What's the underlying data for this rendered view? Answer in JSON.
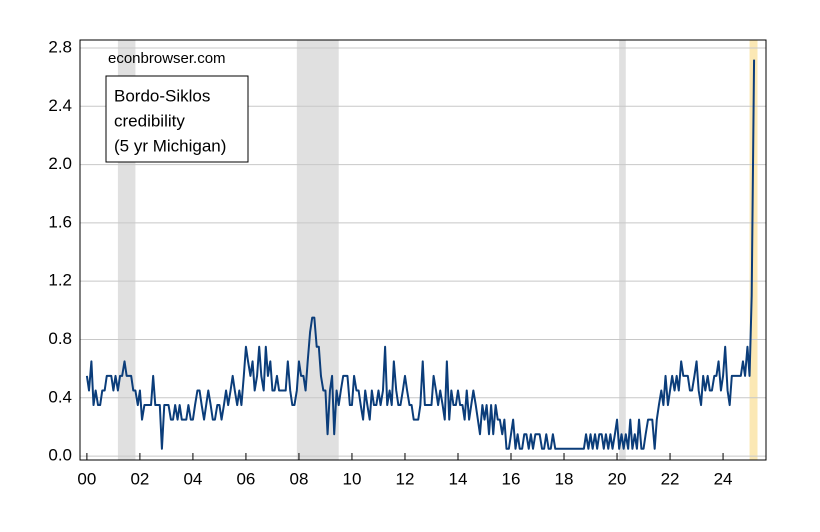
{
  "chart_data": {
    "type": "line",
    "annotations": [
      "econbrowser.com",
      "Bordo-Siklos",
      "credibility",
      "(5 yr Michigan)"
    ],
    "shaded_ranges": [
      [
        2001.17,
        2001.83,
        "#e0e0e0"
      ],
      [
        2007.92,
        2009.5,
        "#e0e0e0"
      ],
      [
        2020.08,
        2020.33,
        "#e0e0e0"
      ],
      [
        2025.0,
        2025.3,
        "#fbe8b4"
      ]
    ],
    "xlim": [
      1999.74,
      2025.62
    ],
    "ylim": [
      -0.027,
      2.855
    ],
    "grid": true,
    "xticks": [
      {
        "value": 2000,
        "label": "00"
      },
      {
        "value": 2002,
        "label": "02"
      },
      {
        "value": 2004,
        "label": "04"
      },
      {
        "value": 2006,
        "label": "06"
      },
      {
        "value": 2008,
        "label": "08"
      },
      {
        "value": 2010,
        "label": "10"
      },
      {
        "value": 2012,
        "label": "12"
      },
      {
        "value": 2014,
        "label": "14"
      },
      {
        "value": 2016,
        "label": "16"
      },
      {
        "value": 2018,
        "label": "18"
      },
      {
        "value": 2020,
        "label": "20"
      },
      {
        "value": 2022,
        "label": "22"
      },
      {
        "value": 2024,
        "label": "24"
      }
    ],
    "yticks": [
      {
        "value": 0,
        "label": "0.0"
      },
      0.4,
      0.8,
      1.2,
      1.6,
      {
        "value": 2,
        "label": "2.0"
      },
      2.4,
      2.8
    ],
    "x": [
      2000,
      2000.08,
      2000.17,
      2000.25,
      2000.33,
      2000.42,
      2000.5,
      2000.58,
      2000.67,
      2000.75,
      2000.83,
      2000.92,
      2001,
      2001.08,
      2001.17,
      2001.25,
      2001.33,
      2001.42,
      2001.5,
      2001.58,
      2001.67,
      2001.75,
      2001.83,
      2001.92,
      2002,
      2002.08,
      2002.17,
      2002.25,
      2002.33,
      2002.42,
      2002.5,
      2002.58,
      2002.67,
      2002.75,
      2002.83,
      2002.92,
      2003,
      2003.08,
      2003.17,
      2003.25,
      2003.33,
      2003.42,
      2003.5,
      2003.58,
      2003.67,
      2003.75,
      2003.83,
      2003.92,
      2004,
      2004.08,
      2004.17,
      2004.25,
      2004.33,
      2004.42,
      2004.5,
      2004.58,
      2004.67,
      2004.75,
      2004.83,
      2004.92,
      2005,
      2005.08,
      2005.17,
      2005.25,
      2005.33,
      2005.42,
      2005.5,
      2005.58,
      2005.67,
      2005.75,
      2005.83,
      2005.92,
      2006,
      2006.08,
      2006.17,
      2006.25,
      2006.33,
      2006.42,
      2006.5,
      2006.58,
      2006.67,
      2006.75,
      2006.83,
      2006.92,
      2007,
      2007.08,
      2007.17,
      2007.25,
      2007.33,
      2007.42,
      2007.5,
      2007.58,
      2007.67,
      2007.75,
      2007.83,
      2007.92,
      2008,
      2008.08,
      2008.17,
      2008.25,
      2008.33,
      2008.42,
      2008.5,
      2008.58,
      2008.67,
      2008.75,
      2008.83,
      2008.92,
      2009,
      2009.08,
      2009.17,
      2009.25,
      2009.33,
      2009.42,
      2009.5,
      2009.58,
      2009.67,
      2009.75,
      2009.83,
      2009.92,
      2010,
      2010.08,
      2010.17,
      2010.25,
      2010.33,
      2010.42,
      2010.5,
      2010.58,
      2010.67,
      2010.75,
      2010.83,
      2010.92,
      2011,
      2011.08,
      2011.17,
      2011.25,
      2011.33,
      2011.42,
      2011.5,
      2011.58,
      2011.67,
      2011.75,
      2011.83,
      2011.92,
      2012,
      2012.08,
      2012.17,
      2012.25,
      2012.33,
      2012.42,
      2012.5,
      2012.58,
      2012.67,
      2012.75,
      2012.83,
      2012.92,
      2013,
      2013.08,
      2013.17,
      2013.25,
      2013.33,
      2013.42,
      2013.5,
      2013.58,
      2013.67,
      2013.75,
      2013.83,
      2013.92,
      2014,
      2014.08,
      2014.17,
      2014.25,
      2014.33,
      2014.42,
      2014.5,
      2014.58,
      2014.67,
      2014.75,
      2014.83,
      2014.92,
      2015,
      2015.08,
      2015.17,
      2015.25,
      2015.33,
      2015.42,
      2015.5,
      2015.58,
      2015.67,
      2015.75,
      2015.83,
      2015.92,
      2016,
      2016.08,
      2016.17,
      2016.25,
      2016.33,
      2016.42,
      2016.5,
      2016.58,
      2016.67,
      2016.75,
      2016.83,
      2016.92,
      2017,
      2017.08,
      2017.17,
      2017.25,
      2017.33,
      2017.42,
      2017.5,
      2017.58,
      2017.67,
      2017.75,
      2017.83,
      2017.92,
      2018,
      2018.08,
      2018.17,
      2018.25,
      2018.33,
      2018.42,
      2018.5,
      2018.58,
      2018.67,
      2018.75,
      2018.83,
      2018.92,
      2019,
      2019.08,
      2019.17,
      2019.25,
      2019.33,
      2019.42,
      2019.5,
      2019.58,
      2019.67,
      2019.75,
      2019.83,
      2019.92,
      2020,
      2020.08,
      2020.17,
      2020.25,
      2020.33,
      2020.42,
      2020.5,
      2020.58,
      2020.67,
      2020.75,
      2020.83,
      2020.92,
      2021,
      2021.08,
      2021.17,
      2021.25,
      2021.33,
      2021.42,
      2021.5,
      2021.58,
      2021.67,
      2021.75,
      2021.83,
      2021.92,
      2022,
      2022.08,
      2022.17,
      2022.25,
      2022.33,
      2022.42,
      2022.5,
      2022.58,
      2022.67,
      2022.75,
      2022.83,
      2022.92,
      2023,
      2023.08,
      2023.17,
      2023.25,
      2023.33,
      2023.42,
      2023.5,
      2023.58,
      2023.67,
      2023.75,
      2023.83,
      2023.92,
      2024,
      2024.08,
      2024.17,
      2024.25,
      2024.33,
      2024.42,
      2024.5,
      2024.58,
      2024.67,
      2024.75,
      2024.83,
      2024.92,
      2025,
      2025.08,
      2025.17
    ],
    "series": [
      {
        "color": "#0b3d7a",
        "values": [
          0.55,
          0.45,
          0.65,
          0.35,
          0.45,
          0.35,
          0.35,
          0.45,
          0.45,
          0.55,
          0.55,
          0.55,
          0.45,
          0.55,
          0.45,
          0.55,
          0.55,
          0.65,
          0.55,
          0.55,
          0.55,
          0.45,
          0.45,
          0.35,
          0.45,
          0.25,
          0.35,
          0.35,
          0.35,
          0.35,
          0.55,
          0.35,
          0.35,
          0.35,
          0.05,
          0.35,
          0.35,
          0.35,
          0.25,
          0.25,
          0.35,
          0.25,
          0.35,
          0.25,
          0.25,
          0.25,
          0.35,
          0.25,
          0.25,
          0.35,
          0.45,
          0.45,
          0.35,
          0.25,
          0.35,
          0.45,
          0.35,
          0.25,
          0.25,
          0.35,
          0.35,
          0.25,
          0.35,
          0.45,
          0.35,
          0.45,
          0.55,
          0.45,
          0.35,
          0.45,
          0.35,
          0.55,
          0.75,
          0.65,
          0.55,
          0.65,
          0.45,
          0.55,
          0.75,
          0.55,
          0.45,
          0.75,
          0.55,
          0.65,
          0.45,
          0.45,
          0.55,
          0.45,
          0.45,
          0.45,
          0.45,
          0.65,
          0.45,
          0.35,
          0.35,
          0.45,
          0.65,
          0.55,
          0.55,
          0.45,
          0.65,
          0.85,
          0.95,
          0.95,
          0.75,
          0.75,
          0.55,
          0.45,
          0.45,
          0.15,
          0.45,
          0.55,
          0.15,
          0.45,
          0.35,
          0.45,
          0.55,
          0.55,
          0.55,
          0.35,
          0.35,
          0.55,
          0.45,
          0.45,
          0.35,
          0.25,
          0.45,
          0.35,
          0.25,
          0.45,
          0.35,
          0.35,
          0.45,
          0.35,
          0.45,
          0.75,
          0.35,
          0.45,
          0.35,
          0.65,
          0.45,
          0.35,
          0.35,
          0.45,
          0.55,
          0.45,
          0.35,
          0.35,
          0.25,
          0.25,
          0.25,
          0.35,
          0.65,
          0.35,
          0.35,
          0.35,
          0.35,
          0.55,
          0.45,
          0.35,
          0.45,
          0.35,
          0.25,
          0.65,
          0.25,
          0.45,
          0.35,
          0.35,
          0.45,
          0.35,
          0.35,
          0.25,
          0.45,
          0.25,
          0.35,
          0.45,
          0.35,
          0.25,
          0.15,
          0.35,
          0.25,
          0.35,
          0.15,
          0.35,
          0.15,
          0.35,
          0.25,
          0.25,
          0.15,
          0.25,
          0.05,
          0.05,
          0.15,
          0.25,
          0.05,
          0.15,
          0.05,
          0.05,
          0.15,
          0.15,
          0.05,
          0.15,
          0.05,
          0.15,
          0.15,
          0.15,
          0.05,
          0.05,
          0.15,
          0.05,
          0.05,
          0.15,
          0.05,
          0.05,
          0.05,
          0.05,
          0.05,
          0.05,
          0.05,
          0.05,
          0.05,
          0.05,
          0.05,
          0.05,
          0.05,
          0.05,
          0.15,
          0.05,
          0.15,
          0.05,
          0.15,
          0.05,
          0.15,
          0.15,
          0.05,
          0.15,
          0.05,
          0.15,
          0.05,
          0.15,
          0.25,
          0.05,
          0.15,
          0.05,
          0.15,
          0.05,
          0.25,
          0.05,
          0.15,
          0.05,
          0.25,
          0.05,
          0.05,
          0.15,
          0.25,
          0.25,
          0.25,
          0.05,
          0.25,
          0.35,
          0.45,
          0.35,
          0.55,
          0.35,
          0.45,
          0.55,
          0.45,
          0.55,
          0.45,
          0.65,
          0.55,
          0.55,
          0.55,
          0.45,
          0.45,
          0.55,
          0.65,
          0.45,
          0.35,
          0.55,
          0.45,
          0.55,
          0.45,
          0.45,
          0.55,
          0.55,
          0.65,
          0.45,
          0.55,
          0.75,
          0.45,
          0.35,
          0.55,
          0.55,
          0.55,
          0.55,
          0.55,
          0.65,
          0.55,
          0.75,
          0.55,
          1.1,
          2.72
        ]
      }
    ]
  }
}
